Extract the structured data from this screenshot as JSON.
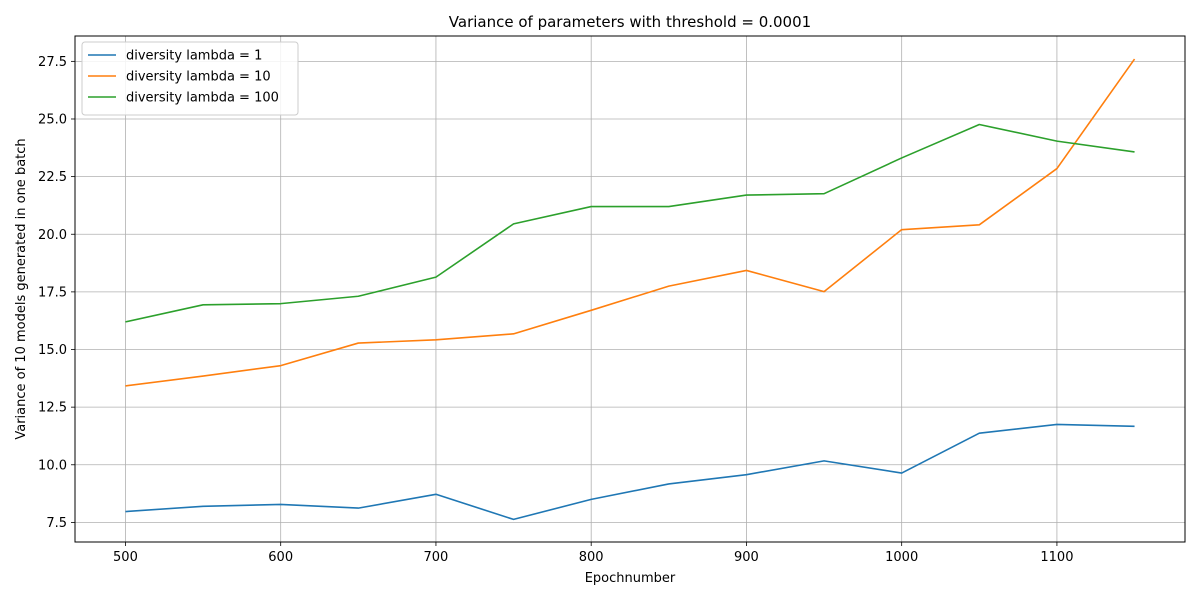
{
  "chart_data": {
    "type": "line",
    "title": "Variance of parameters with threshold = 0.0001",
    "xlabel": "Epochnumber",
    "ylabel": "Variance of 10 models generated in one batch",
    "x": [
      500,
      550,
      600,
      650,
      700,
      750,
      800,
      850,
      900,
      950,
      1000,
      1050,
      1100,
      1150
    ],
    "xlim": [
      467.5,
      1182.5
    ],
    "ylim": [
      6.65,
      28.6
    ],
    "xticks": [
      500,
      600,
      700,
      800,
      900,
      1000,
      1100
    ],
    "xtick_labels": [
      "500",
      "600",
      "700",
      "800",
      "900",
      "1000",
      "1100"
    ],
    "yticks": [
      7.5,
      10.0,
      12.5,
      15.0,
      17.5,
      20.0,
      22.5,
      25.0,
      27.5
    ],
    "ytick_labels": [
      "7.5",
      "10.0",
      "12.5",
      "15.0",
      "17.5",
      "20.0",
      "22.5",
      "25.0",
      "27.5"
    ],
    "grid": true,
    "legend_position": "top-left",
    "series": [
      {
        "name": "diversity lambda = 1",
        "color": "#1f77b4",
        "values": [
          7.97,
          8.2,
          8.28,
          8.12,
          8.72,
          7.63,
          8.5,
          9.17,
          9.57,
          10.17,
          9.64,
          11.37,
          11.75,
          11.67
        ]
      },
      {
        "name": "diversity lambda = 10",
        "color": "#ff7f0e",
        "values": [
          13.42,
          13.85,
          14.3,
          15.28,
          15.42,
          15.68,
          16.7,
          17.75,
          18.43,
          17.51,
          20.2,
          20.41,
          22.85,
          27.6
        ]
      },
      {
        "name": "diversity lambda = 100",
        "color": "#2ca02c",
        "values": [
          16.2,
          16.94,
          16.99,
          17.31,
          18.14,
          20.45,
          21.2,
          21.2,
          21.7,
          21.76,
          23.31,
          24.76,
          24.04,
          23.57
        ]
      }
    ]
  }
}
